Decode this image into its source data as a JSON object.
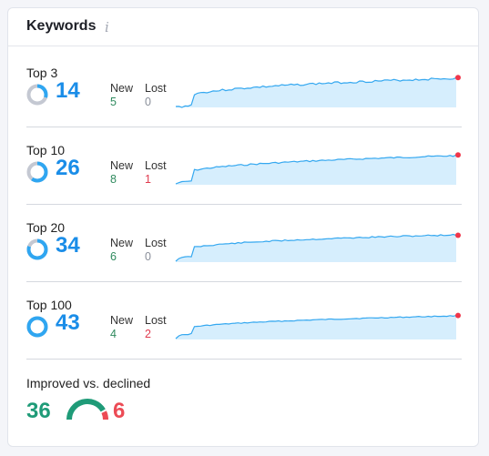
{
  "header": {
    "title": "Keywords",
    "info_icon": "info-icon"
  },
  "colors": {
    "accent_blue": "#1a8de8",
    "ring_blue": "#2fa6f1",
    "ring_track": "#c4c8d2",
    "new_green": "#2f8a5e",
    "lost_red": "#e03b4f",
    "lost_zero_gray": "#8a8f9a",
    "improved_green": "#1f9b78",
    "declined_red": "#ec4b55",
    "spark_line": "#35a8f0",
    "spark_fill": "#d6eefd",
    "spark_end": "#f0364b"
  },
  "rows": [
    {
      "label": "Top 3",
      "count": "14",
      "ring_fraction": 0.3,
      "new_label": "New",
      "new_value": "5",
      "lost_label": "Lost",
      "lost_value": "0"
    },
    {
      "label": "Top 10",
      "count": "26",
      "ring_fraction": 0.6,
      "new_label": "New",
      "new_value": "8",
      "lost_label": "Lost",
      "lost_value": "1"
    },
    {
      "label": "Top 20",
      "count": "34",
      "ring_fraction": 0.8,
      "new_label": "New",
      "new_value": "6",
      "lost_label": "Lost",
      "lost_value": "0"
    },
    {
      "label": "Top 100",
      "count": "43",
      "ring_fraction": 1.0,
      "new_label": "New",
      "new_value": "4",
      "lost_label": "Lost",
      "lost_value": "2"
    }
  ],
  "improved": {
    "label": "Improved vs. declined",
    "improved_value": "36",
    "declined_value": "6",
    "improved_fraction": 0.857
  }
}
